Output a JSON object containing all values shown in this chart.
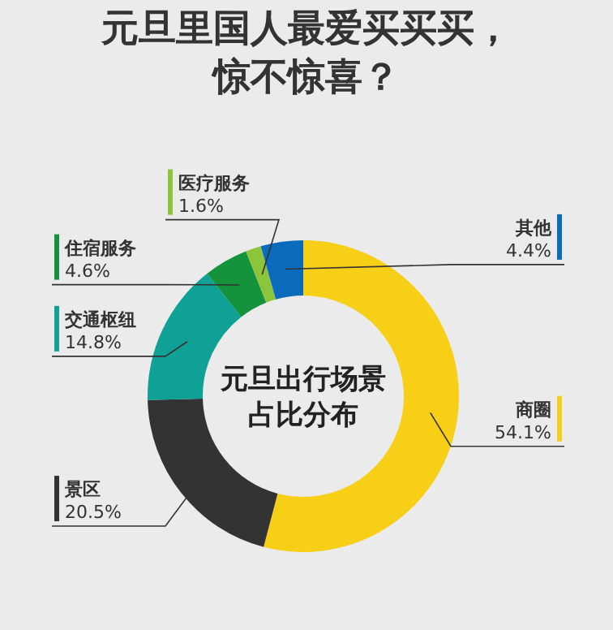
{
  "chart_data": {
    "type": "donut",
    "title": "元旦里国人最爱买买买，惊不惊喜？",
    "subtitle": "元旦出行场景占比分布",
    "categories": [
      "商圈",
      "景区",
      "交通枢纽",
      "住宿服务",
      "医疗服务",
      "其他"
    ],
    "values": [
      54.1,
      20.5,
      14.8,
      4.6,
      1.6,
      4.4
    ],
    "value_labels": [
      "54.1%",
      "20.5%",
      "14.8%",
      "4.6%",
      "1.6%",
      "4.4%"
    ],
    "colors": [
      "#f7cf16",
      "#333333",
      "#0fa096",
      "#14923c",
      "#8cc43c",
      "#0a6bbd"
    ]
  }
}
